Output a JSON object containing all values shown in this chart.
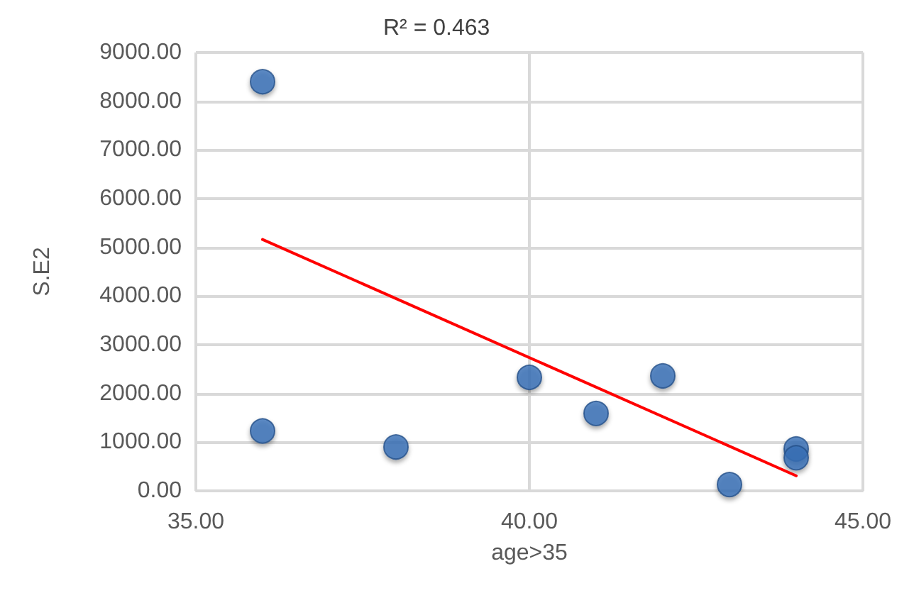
{
  "chart_data": {
    "type": "scatter",
    "xlabel": "age>35",
    "ylabel": "S.E2",
    "annotations": [
      "R² = 0.463"
    ],
    "series": [
      {
        "color": "#3a70b8",
        "x": [
          36,
          36,
          38,
          40,
          41,
          42,
          43,
          44,
          44
        ],
        "values": [
          8400,
          1230,
          900,
          2330,
          1590,
          2360,
          130,
          860,
          680
        ]
      },
      {
        "type": "line",
        "color": "#ff0000",
        "x": [
          36,
          44
        ],
        "values": [
          5160,
          310
        ],
        "marker": "none",
        "line_style": "solid"
      }
    ],
    "xlim": [
      35,
      45
    ],
    "xticks": [
      {
        "value": 35,
        "label": "35.00"
      },
      {
        "value": 40,
        "label": "40.00"
      },
      {
        "value": 45,
        "label": "45.00"
      }
    ],
    "ylim": [
      0,
      9000
    ],
    "yticks": [
      {
        "value": 0,
        "label": "0.00"
      },
      {
        "value": 1000,
        "label": "1000.00"
      },
      {
        "value": 2000,
        "label": "2000.00"
      },
      {
        "value": 3000,
        "label": "3000.00"
      },
      {
        "value": 4000,
        "label": "4000.00"
      },
      {
        "value": 5000,
        "label": "5000.00"
      },
      {
        "value": 6000,
        "label": "6000.00"
      },
      {
        "value": 7000,
        "label": "7000.00"
      },
      {
        "value": 8000,
        "label": "8000.00"
      },
      {
        "value": 9000,
        "label": "9000.00"
      }
    ],
    "grid": true,
    "marker": "circle"
  }
}
